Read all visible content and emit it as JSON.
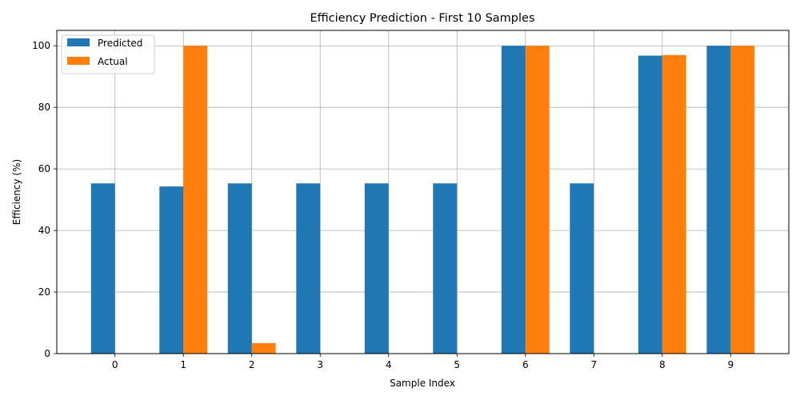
{
  "chart_data": {
    "type": "bar",
    "title": "Efficiency Prediction - First 10 Samples",
    "xlabel": "Sample Index",
    "ylabel": "Efficiency (%)",
    "categories": [
      "0",
      "1",
      "2",
      "3",
      "4",
      "5",
      "6",
      "7",
      "8",
      "9"
    ],
    "series": [
      {
        "name": "Predicted",
        "color": "#1f77b4",
        "values": [
          55.3,
          54.3,
          55.3,
          55.3,
          55.3,
          55.3,
          100,
          55.3,
          96.8,
          100
        ]
      },
      {
        "name": "Actual",
        "color": "#ff7f0e",
        "values": [
          0,
          100,
          3.4,
          0,
          0,
          0,
          100,
          0,
          97,
          100
        ]
      }
    ],
    "ylim": [
      0,
      105
    ],
    "yticks": [
      0,
      20,
      40,
      60,
      80,
      100
    ],
    "grid": true,
    "legend_position": "top-left"
  }
}
